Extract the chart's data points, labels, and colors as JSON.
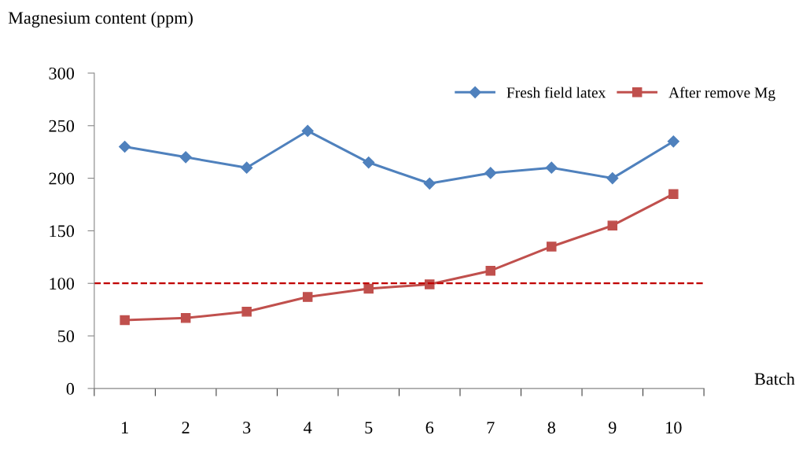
{
  "chart_data": {
    "type": "line",
    "ylabel": "Magnesium content (ppm)",
    "xlabel": "Batch",
    "categories": [
      "1",
      "2",
      "3",
      "4",
      "5",
      "6",
      "7",
      "8",
      "9",
      "10"
    ],
    "series": [
      {
        "name": "Fresh field latex",
        "color": "#4f81bd",
        "marker": "diamond",
        "values": [
          230,
          220,
          210,
          245,
          215,
          195,
          205,
          210,
          200,
          235
        ]
      },
      {
        "name": "After remove Mg",
        "color": "#c0504d",
        "marker": "square",
        "values": [
          65,
          67,
          73,
          87,
          95,
          99,
          112,
          135,
          155,
          185
        ]
      }
    ],
    "ylim": [
      0,
      300
    ],
    "yticks": [
      0,
      50,
      100,
      150,
      200,
      250,
      300
    ],
    "ref_lines": [
      {
        "axis": "y",
        "value": 100,
        "color": "#c00000",
        "line_style": "dashed"
      }
    ],
    "legend": "top right",
    "grid": false,
    "line_style": "solid"
  }
}
